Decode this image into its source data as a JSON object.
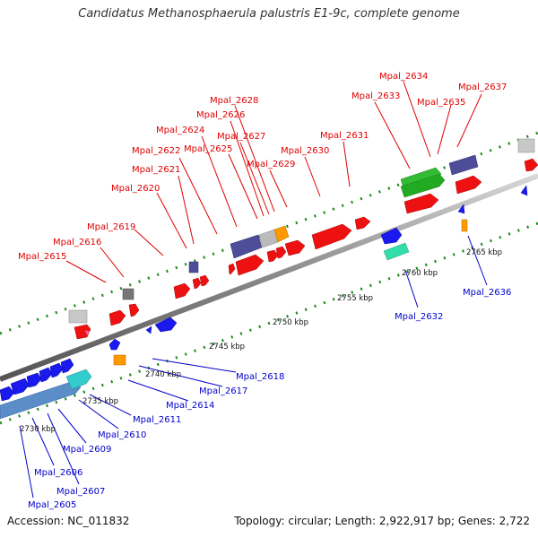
{
  "title": "Candidatus Methanosphaerula palustris E1-9c, complete genome",
  "footer": {
    "accession": "Accession: NC_011832",
    "stats": "Topology: circular; Length: 2,922,917 bp; Genes: 2,722"
  },
  "forward_labels": [
    "Mpal_2615",
    "Mpal_2616",
    "Mpal_2619",
    "Mpal_2620",
    "Mpal_2621",
    "Mpal_2622",
    "Mpal_2624",
    "Mpal_2625",
    "Mpal_2626",
    "Mpal_2627",
    "Mpal_2628",
    "Mpal_2629",
    "Mpal_2630",
    "Mpal_2631",
    "Mpal_2633",
    "Mpal_2634",
    "Mpal_2635",
    "Mpal_2637"
  ],
  "reverse_labels": [
    "Mpal_2605",
    "Mpal_2606",
    "Mpal_2607",
    "Mpal_2609",
    "Mpal_2610",
    "Mpal_2611",
    "Mpal_2614",
    "Mpal_2617",
    "Mpal_2618",
    "Mpal_2632",
    "Mpal_2636"
  ],
  "scale_labels": [
    "2730 kbp",
    "2735 kbp",
    "2740 kbp",
    "2745 kbp",
    "2750 kbp",
    "2755 kbp",
    "2760 kbp",
    "2765 kbp"
  ],
  "colors": {
    "forward_label": "#e00000",
    "reverse_label": "#0000cc",
    "forward_gene": "#ee1111",
    "reverse_gene": "#1a1aee",
    "backbone": "#999999"
  }
}
